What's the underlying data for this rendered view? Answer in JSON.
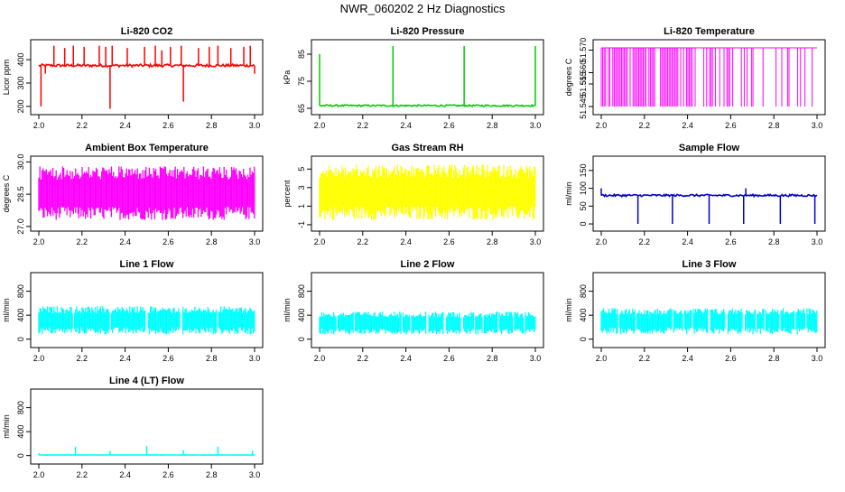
{
  "title": "NWR_060202  2 Hz Diagnostics",
  "colors": {
    "red": "#ff0000",
    "green": "#00cc00",
    "magenta": "#ff00ff",
    "yellow": "#ffff00",
    "blue": "#0000cc",
    "cyan": "#00ffff",
    "axis": "#000000"
  },
  "chart_data": [
    {
      "type": "line",
      "title": "Li-820 CO2",
      "ylabel": "Licor ppm",
      "color": "#ff0000",
      "xlim": [
        2.0,
        3.0
      ],
      "ylim": [
        180,
        470
      ],
      "xticks": [
        "2.0",
        "2.2",
        "2.4",
        "2.6",
        "2.8",
        "3.0"
      ],
      "yticks": [
        "200",
        "300",
        "400"
      ],
      "series": [
        {
          "baseline": 375,
          "noise": 6,
          "spikes": [
            {
              "x": 2.01,
              "y": 200
            },
            {
              "x": 2.03,
              "y": 340
            },
            {
              "x": 2.07,
              "y": 460
            },
            {
              "x": 2.12,
              "y": 450
            },
            {
              "x": 2.16,
              "y": 460
            },
            {
              "x": 2.21,
              "y": 455
            },
            {
              "x": 2.28,
              "y": 460
            },
            {
              "x": 2.31,
              "y": 455
            },
            {
              "x": 2.33,
              "y": 190
            },
            {
              "x": 2.34,
              "y": 460
            },
            {
              "x": 2.41,
              "y": 450
            },
            {
              "x": 2.49,
              "y": 455
            },
            {
              "x": 2.54,
              "y": 460
            },
            {
              "x": 2.57,
              "y": 440
            },
            {
              "x": 2.61,
              "y": 455
            },
            {
              "x": 2.66,
              "y": 460
            },
            {
              "x": 2.67,
              "y": 220
            },
            {
              "x": 2.74,
              "y": 450
            },
            {
              "x": 2.79,
              "y": 455
            },
            {
              "x": 2.83,
              "y": 460
            },
            {
              "x": 2.89,
              "y": 450
            },
            {
              "x": 2.95,
              "y": 455
            },
            {
              "x": 2.98,
              "y": 460
            },
            {
              "x": 3.0,
              "y": 340
            }
          ]
        }
      ]
    },
    {
      "type": "line",
      "title": "Li-820 Pressure",
      "ylabel": "kPa",
      "color": "#00cc00",
      "xlim": [
        2.0,
        3.0
      ],
      "ylim": [
        64,
        89
      ],
      "xticks": [
        "2.0",
        "2.2",
        "2.4",
        "2.6",
        "2.8",
        "3.0"
      ],
      "yticks": [
        "65",
        "75",
        "85"
      ],
      "series": [
        {
          "baseline": 66,
          "noise": 0.3,
          "spikes": [
            {
              "x": 2.0,
              "y": 85
            },
            {
              "x": 2.34,
              "y": 88
            },
            {
              "x": 2.67,
              "y": 88
            },
            {
              "x": 3.0,
              "y": 88
            }
          ]
        }
      ]
    },
    {
      "type": "line",
      "title": "Li-820 Temperature",
      "ylabel": "degrees C",
      "color": "#ff00ff",
      "xlim": [
        2.0,
        3.0
      ],
      "ylim": [
        51.543,
        51.573
      ],
      "xticks": [
        "2.0",
        "2.2",
        "2.4",
        "2.6",
        "2.8",
        "3.0"
      ],
      "yticks": [
        "51.545",
        "51.555",
        "51.560",
        "51.570"
      ],
      "series": [
        {
          "baseline": 51.571,
          "low": 51.545
        }
      ]
    },
    {
      "type": "line",
      "title": "Ambient Box Temperature",
      "ylabel": "degrees C",
      "color": "#ff00ff",
      "xlim": [
        2.0,
        3.0
      ],
      "ylim": [
        26.95,
        30.1
      ],
      "xticks": [
        "2.0",
        "2.2",
        "2.4",
        "2.6",
        "2.8",
        "3.0"
      ],
      "yticks": [
        "27.0",
        "28.5",
        "30.0"
      ],
      "series": [
        {
          "low": 27.3,
          "high": 29.8
        }
      ]
    },
    {
      "type": "line",
      "title": "Gas Stream RH",
      "ylabel": "percent",
      "color": "#ffff00",
      "xlim": [
        2.0,
        3.0
      ],
      "ylim": [
        -1.3,
        6.0
      ],
      "xticks": [
        "2.0",
        "2.2",
        "2.4",
        "2.6",
        "2.8",
        "3.0"
      ],
      "yticks": [
        "-1",
        "1",
        "3",
        "5"
      ],
      "series": [
        {
          "low": -0.5,
          "high": 5.5
        }
      ]
    },
    {
      "type": "line",
      "title": "Sample Flow",
      "ylabel": "ml/min",
      "color": "#0000cc",
      "xlim": [
        2.0,
        3.0
      ],
      "ylim": [
        -10,
        180
      ],
      "xticks": [
        "2.0",
        "2.2",
        "2.4",
        "2.6",
        "2.8",
        "3.0"
      ],
      "yticks": [
        "0",
        "50",
        "100",
        "150"
      ],
      "series": [
        {
          "baseline": 80,
          "noise": 3,
          "spikes": [
            {
              "x": 2.0,
              "y": 100
            },
            {
              "x": 2.17,
              "y": 0
            },
            {
              "x": 2.33,
              "y": 0
            },
            {
              "x": 2.5,
              "y": 0
            },
            {
              "x": 2.66,
              "y": 0
            },
            {
              "x": 2.67,
              "y": 100
            },
            {
              "x": 2.83,
              "y": 0
            },
            {
              "x": 2.99,
              "y": 0
            }
          ]
        }
      ]
    },
    {
      "type": "line",
      "title": "Line 1 Flow",
      "ylabel": "ml/min",
      "color": "#00ffff",
      "xlim": [
        2.0,
        3.0
      ],
      "ylim": [
        -80,
        1050
      ],
      "xticks": [
        "2.0",
        "2.2",
        "2.4",
        "2.6",
        "2.8",
        "3.0"
      ],
      "yticks": [
        "0",
        "400",
        "800"
      ],
      "series": [
        {
          "low": 80,
          "high": 550,
          "gaps": [
            2.16,
            2.33,
            2.5,
            2.66,
            2.83
          ]
        }
      ]
    },
    {
      "type": "line",
      "title": "Line 2 Flow",
      "ylabel": "ml/min",
      "color": "#00ffff",
      "xlim": [
        2.0,
        3.0
      ],
      "ylim": [
        -80,
        1050
      ],
      "xticks": [
        "2.0",
        "2.2",
        "2.4",
        "2.6",
        "2.8",
        "3.0"
      ],
      "yticks": [
        "0",
        "400",
        "800"
      ],
      "series": [
        {
          "low": 80,
          "high": 460,
          "gaps": [
            2.08,
            2.16,
            2.38,
            2.42,
            2.5,
            2.58,
            2.66,
            2.72,
            2.76,
            2.83,
            2.9,
            2.95
          ]
        }
      ]
    },
    {
      "type": "line",
      "title": "Line 3 Flow",
      "ylabel": "ml/min",
      "color": "#00ffff",
      "xlim": [
        2.0,
        3.0
      ],
      "ylim": [
        -80,
        1050
      ],
      "xticks": [
        "2.0",
        "2.2",
        "2.4",
        "2.6",
        "2.8",
        "3.0"
      ],
      "yticks": [
        "0",
        "400",
        "800"
      ],
      "series": [
        {
          "low": 80,
          "high": 520,
          "gaps": [
            2.08,
            2.16,
            2.33,
            2.38,
            2.42,
            2.5,
            2.58,
            2.66,
            2.72,
            2.76,
            2.83,
            2.9,
            2.95
          ]
        }
      ]
    },
    {
      "type": "line",
      "title": "Line 4 (LT) Flow",
      "ylabel": "ml/min",
      "color": "#00ffff",
      "xlim": [
        2.0,
        3.0
      ],
      "ylim": [
        -80,
        1050
      ],
      "xticks": [
        "2.0",
        "2.2",
        "2.4",
        "2.6",
        "2.8",
        "3.0"
      ],
      "yticks": [
        "0",
        "400",
        "800"
      ],
      "series": [
        {
          "baseline": 10,
          "noise": 2,
          "spikes": [
            {
              "x": 2.0,
              "y": 40
            },
            {
              "x": 2.17,
              "y": 150
            },
            {
              "x": 2.33,
              "y": 80
            },
            {
              "x": 2.5,
              "y": 160
            },
            {
              "x": 2.67,
              "y": 90
            },
            {
              "x": 2.83,
              "y": 150
            },
            {
              "x": 2.99,
              "y": 80
            }
          ]
        }
      ]
    }
  ]
}
